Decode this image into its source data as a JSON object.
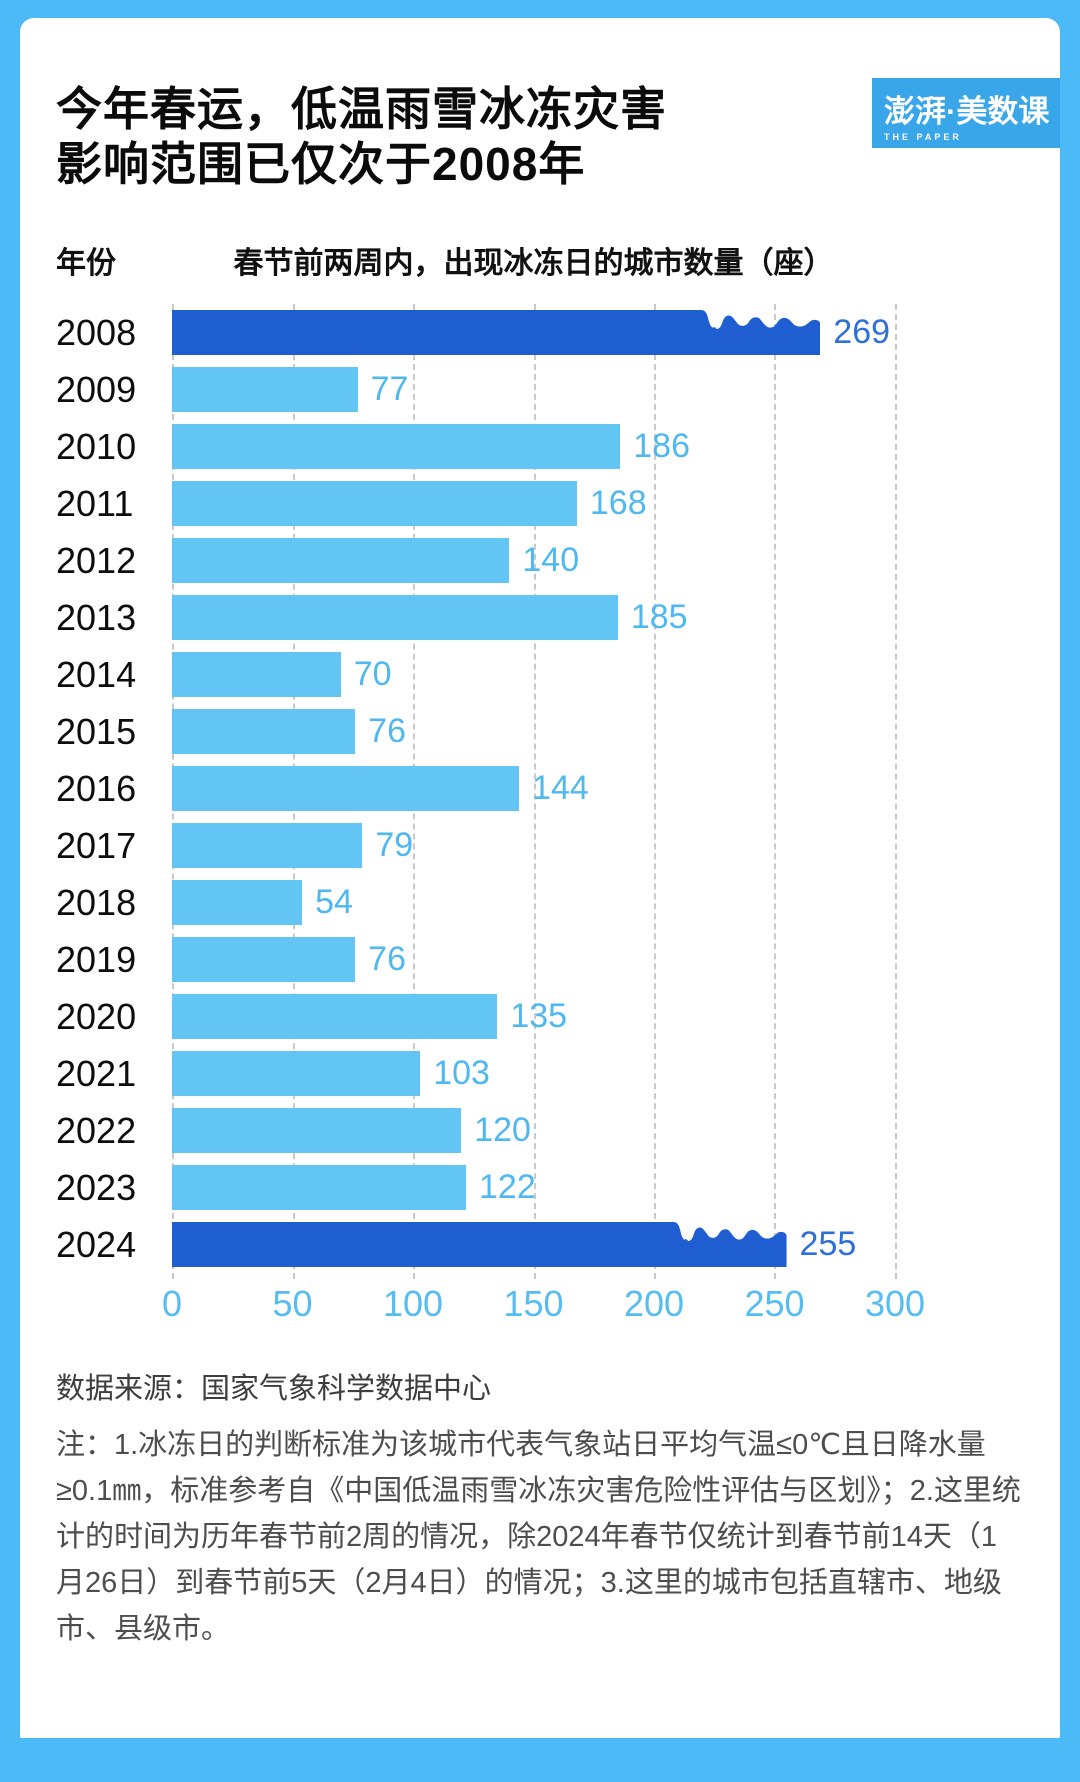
{
  "page": {
    "title_line1": "今年春运，低温雨雪冰冻灾害",
    "title_line2": "影响范围已仅次于2008年"
  },
  "logo": {
    "brand": "澎湃·美数课",
    "sub": "THE PAPER"
  },
  "chart": {
    "year_col_header": "年份",
    "subtitle": "春节前两周内，出现冰冻日的城市数量（座）",
    "xmax": 300,
    "axis_ticks": [
      "0",
      "50",
      "100",
      "150",
      "200",
      "250",
      "300"
    ],
    "rows": [
      {
        "year": "2008",
        "value": 269,
        "style": "dark"
      },
      {
        "year": "2009",
        "value": 77,
        "style": "light"
      },
      {
        "year": "2010",
        "value": 186,
        "style": "light"
      },
      {
        "year": "2011",
        "value": 168,
        "style": "light"
      },
      {
        "year": "2012",
        "value": 140,
        "style": "light"
      },
      {
        "year": "2013",
        "value": 185,
        "style": "light"
      },
      {
        "year": "2014",
        "value": 70,
        "style": "light"
      },
      {
        "year": "2015",
        "value": 76,
        "style": "light"
      },
      {
        "year": "2016",
        "value": 144,
        "style": "light"
      },
      {
        "year": "2017",
        "value": 79,
        "style": "light"
      },
      {
        "year": "2018",
        "value": 54,
        "style": "light"
      },
      {
        "year": "2019",
        "value": 76,
        "style": "light"
      },
      {
        "year": "2020",
        "value": 135,
        "style": "light"
      },
      {
        "year": "2021",
        "value": 103,
        "style": "light"
      },
      {
        "year": "2022",
        "value": 120,
        "style": "light"
      },
      {
        "year": "2023",
        "value": 122,
        "style": "light"
      },
      {
        "year": "2024",
        "value": 255,
        "style": "dark"
      }
    ]
  },
  "chart_data": {
    "type": "bar",
    "orientation": "horizontal",
    "title": "春节前两周内，出现冰冻日的城市数量（座）",
    "categories": [
      "2008",
      "2009",
      "2010",
      "2011",
      "2012",
      "2013",
      "2014",
      "2015",
      "2016",
      "2017",
      "2018",
      "2019",
      "2020",
      "2021",
      "2022",
      "2023",
      "2024"
    ],
    "values": [
      269,
      77,
      186,
      168,
      140,
      185,
      70,
      76,
      144,
      79,
      54,
      76,
      135,
      103,
      120,
      122,
      255
    ],
    "xlabel": "出现冰冻日的城市数量（座）",
    "ylabel": "年份",
    "xlim": [
      0,
      300
    ],
    "xticks": [
      0,
      50,
      100,
      150,
      200,
      250,
      300
    ],
    "grid": "vertical-dashed",
    "highlighted_categories": [
      "2008",
      "2024"
    ],
    "colors": {
      "bar_normal": "#62c5f4",
      "bar_highlight": "#1e5ed0",
      "label_normal": "#4fb8f0",
      "label_highlight": "#2f6fd8",
      "axis_text": "#56bdf2",
      "background": "#4bbaf6",
      "card": "#ffffff",
      "logo_box": "#38a6e8"
    }
  },
  "footer": {
    "source": "数据来源：国家气象科学数据中心",
    "note": "注：1.冰冻日的判断标准为该城市代表气象站日平均气温≤0℃且日降水量≥0.1㎜，标准参考自《中国低温雨雪冰冻灾害危险性评估与区划》；2.这里统计的时间为历年春节前2周的情况，除2024年春节仅统计到春节前14天（1月26日）到春节前5天（2月4日）的情况；3.这里的城市包括直辖市、地级市、县级市。"
  }
}
